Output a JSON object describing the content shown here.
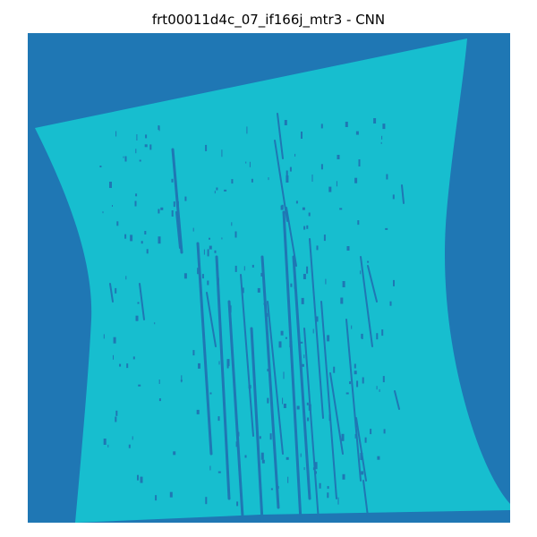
{
  "figure": {
    "title": "frt00011d4c_07_if166j_mtr3 - CNN"
  },
  "colors": {
    "background_class": "#1f77b4",
    "foreground_class": "#17becf"
  }
}
